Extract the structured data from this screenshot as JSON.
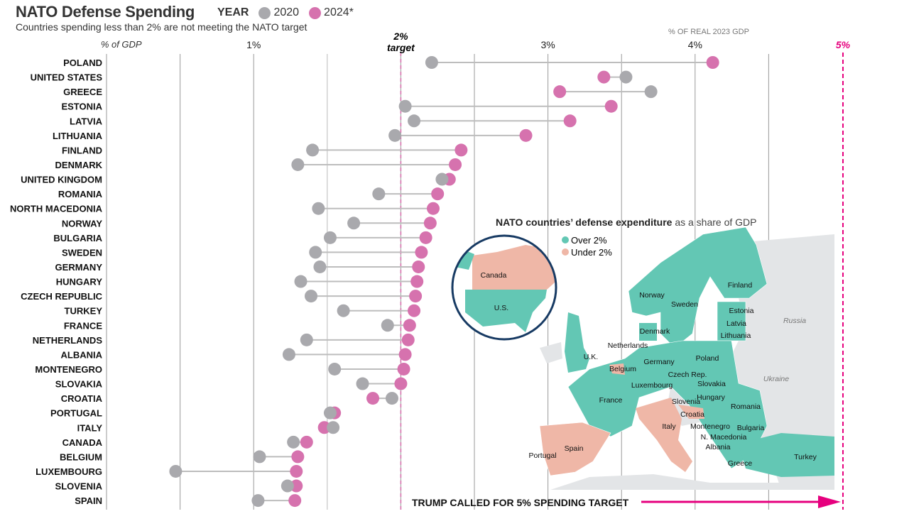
{
  "title": "NATO Defense Spending",
  "subtitle": "Countries spending less than 2% are not meeting the NATO target",
  "legend": {
    "label": "YEAR",
    "items": [
      {
        "name": "2020",
        "color": "#a9a9ad"
      },
      {
        "name": "2024*",
        "color": "#d672ae"
      }
    ]
  },
  "axis": {
    "unit_label": "% of GDP",
    "top_right_label": "% OF REAL 2023 GDP",
    "ticks": [
      {
        "value": 1,
        "label": "1%"
      },
      {
        "value": 3,
        "label": "3%"
      },
      {
        "value": 4,
        "label": "4%"
      }
    ]
  },
  "target": {
    "value": 2,
    "label_line1": "2%",
    "label_line2": "target"
  },
  "trump": {
    "value": 5,
    "label": "5%",
    "callout": "TRUMP CALLED FOR 5% SPENDING TARGET",
    "color": "#e6007e"
  },
  "chart_data": {
    "type": "dumbbell",
    "title": "NATO Defense Spending",
    "xlabel": "% of GDP",
    "xlim": [
      0,
      5
    ],
    "gridlines_every": 0.5,
    "series": [
      "2020",
      "2024*"
    ],
    "rows": [
      {
        "country": "POLAND",
        "v2020": 2.21,
        "v2024": 4.12
      },
      {
        "country": "UNITED STATES",
        "v2020": 3.53,
        "v2024": 3.38
      },
      {
        "country": "GREECE",
        "v2020": 3.7,
        "v2024": 3.08
      },
      {
        "country": "ESTONIA",
        "v2020": 2.03,
        "v2024": 3.43
      },
      {
        "country": "LATVIA",
        "v2020": 2.09,
        "v2024": 3.15
      },
      {
        "country": "LITHUANIA",
        "v2020": 1.96,
        "v2024": 2.85
      },
      {
        "country": "FINLAND",
        "v2020": 1.4,
        "v2024": 2.41
      },
      {
        "country": "DENMARK",
        "v2020": 1.3,
        "v2024": 2.37
      },
      {
        "country": "UNITED KINGDOM",
        "v2020": 2.28,
        "v2024": 2.33
      },
      {
        "country": "ROMANIA",
        "v2020": 1.85,
        "v2024": 2.25
      },
      {
        "country": "NORTH MACEDONIA",
        "v2020": 1.44,
        "v2024": 2.22
      },
      {
        "country": "NORWAY",
        "v2020": 1.68,
        "v2024": 2.2
      },
      {
        "country": "BULGARIA",
        "v2020": 1.52,
        "v2024": 2.17
      },
      {
        "country": "SWEDEN",
        "v2020": 1.42,
        "v2024": 2.14
      },
      {
        "country": "GERMANY",
        "v2020": 1.45,
        "v2024": 2.12
      },
      {
        "country": "HUNGARY",
        "v2020": 1.32,
        "v2024": 2.11
      },
      {
        "country": "CZECH REPUBLIC",
        "v2020": 1.39,
        "v2024": 2.1
      },
      {
        "country": "TURKEY",
        "v2020": 1.61,
        "v2024": 2.09
      },
      {
        "country": "FRANCE",
        "v2020": 1.91,
        "v2024": 2.06
      },
      {
        "country": "NETHERLANDS",
        "v2020": 1.36,
        "v2024": 2.05
      },
      {
        "country": "ALBANIA",
        "v2020": 1.24,
        "v2024": 2.03
      },
      {
        "country": "MONTENEGRO",
        "v2020": 1.55,
        "v2024": 2.02
      },
      {
        "country": "SLOVAKIA",
        "v2020": 1.74,
        "v2024": 2.0
      },
      {
        "country": "CROATIA",
        "v2020": 1.94,
        "v2024": 1.81
      },
      {
        "country": "PORTUGAL",
        "v2020": 1.52,
        "v2024": 1.55
      },
      {
        "country": "ITALY",
        "v2020": 1.54,
        "v2024": 1.48
      },
      {
        "country": "CANADA",
        "v2020": 1.27,
        "v2024": 1.36
      },
      {
        "country": "BELGIUM",
        "v2020": 1.04,
        "v2024": 1.3
      },
      {
        "country": "LUXEMBOURG",
        "v2020": 0.47,
        "v2024": 1.29
      },
      {
        "country": "SLOVENIA",
        "v2020": 1.23,
        "v2024": 1.29
      },
      {
        "country": "SPAIN",
        "v2020": 1.03,
        "v2024": 1.28
      }
    ]
  },
  "map": {
    "title_bold": "NATO countries’ defense expenditure",
    "title_rest": " as a share of GDP",
    "legend": [
      {
        "label": "Over 2%",
        "color": "#63c7b4"
      },
      {
        "label": "Under 2%",
        "color": "#efb7a7"
      }
    ],
    "other_color": "#e3e5e7",
    "labels": {
      "canada": "Canada",
      "us": "U.S.",
      "norway": "Norway",
      "sweden": "Sweden",
      "finland": "Finland",
      "estonia": "Estonia",
      "latvia": "Latvia",
      "lithuania": "Lithuania",
      "denmark": "Denmark",
      "russia": "Russia",
      "netherlands": "Netherlands",
      "uk": "U.K.",
      "germany": "Germany",
      "poland": "Poland",
      "belgium": "Belgium",
      "czech": "Czech Rep.",
      "luxembourg": "Luxembourg",
      "slovakia": "Slovakia",
      "ukraine": "Ukraine",
      "hungary": "Hungary",
      "france": "France",
      "slovenia": "Slovenia",
      "romania": "Romania",
      "croatia": "Croatia",
      "italy": "Italy",
      "montenegro": "Montenegro",
      "bulgaria": "Bulgaria",
      "nmacedonia": "N. Macedonia",
      "albania": "Albania",
      "spain": "Spain",
      "portugal": "Portugal",
      "turkey": "Turkey",
      "greece": "Greece"
    }
  }
}
